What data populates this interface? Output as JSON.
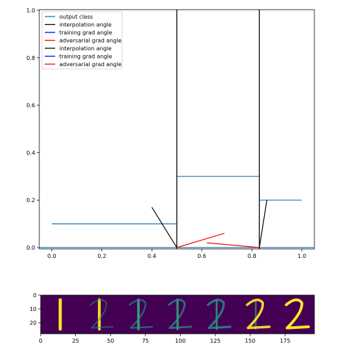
{
  "chart_data": [
    {
      "type": "line",
      "title": "",
      "xlabel": "",
      "ylabel": "",
      "xlim": [
        -0.05,
        1.05
      ],
      "ylim": [
        0.0,
        1.0
      ],
      "xticks": [
        "0.0",
        "0.2",
        "0.4",
        "0.6",
        "0.8",
        "1.0"
      ],
      "yticks": [
        "0.0",
        "0.2",
        "0.4",
        "0.6",
        "0.8",
        "1.0"
      ],
      "grid": false,
      "legend_position": "upper-left",
      "legend": [
        {
          "label": "output class",
          "color": "#1f77b4"
        },
        {
          "label": "interpolation angle",
          "color": "#000000"
        },
        {
          "label": "training grad angle",
          "color": "#0000ff"
        },
        {
          "label": "adversarial grad angle",
          "color": "#ff0000"
        },
        {
          "label": "interpolation angle",
          "color": "#000000"
        },
        {
          "label": "training grad angle",
          "color": "#0000ff"
        },
        {
          "label": "adversarial grad angle",
          "color": "#ff0000"
        }
      ],
      "series": [
        {
          "color": "#1f77b4",
          "kind": "step",
          "segments": [
            {
              "x": [
                0.0,
                0.5
              ],
              "y": [
                0.1,
                0.1
              ]
            },
            {
              "x": [
                0.5,
                0.83
              ],
              "y": [
                0.3,
                0.3
              ]
            },
            {
              "x": [
                0.83,
                1.0
              ],
              "y": [
                0.2,
                0.2
              ]
            },
            {
              "x": [
                -0.05,
                1.05
              ],
              "y": [
                0.0,
                0.0
              ]
            }
          ]
        },
        {
          "color": "#000000",
          "kind": "vline",
          "x": [
            0.5,
            0.83
          ]
        },
        {
          "color": "#000000",
          "kind": "segment",
          "segments": [
            {
              "x": [
                0.4,
                0.5
              ],
              "y": [
                0.17,
                0.0
              ]
            },
            {
              "x": [
                0.83,
                0.86
              ],
              "y": [
                0.0,
                0.2
              ]
            }
          ]
        },
        {
          "color": "#ff0000",
          "kind": "segment",
          "segments": [
            {
              "x": [
                0.5,
                0.69
              ],
              "y": [
                0.0,
                0.06
              ]
            },
            {
              "x": [
                0.62,
                0.83
              ],
              "y": [
                0.02,
                0.0
              ]
            }
          ]
        }
      ]
    },
    {
      "type": "heatmap",
      "title": "",
      "xticks": [
        "0",
        "25",
        "50",
        "75",
        "100",
        "125",
        "150",
        "175"
      ],
      "yticks": [
        "0",
        "10",
        "20"
      ],
      "xlim": [
        0,
        196
      ],
      "ylim": [
        28,
        0
      ],
      "colormap": "viridis",
      "image_panels": 7
    }
  ]
}
